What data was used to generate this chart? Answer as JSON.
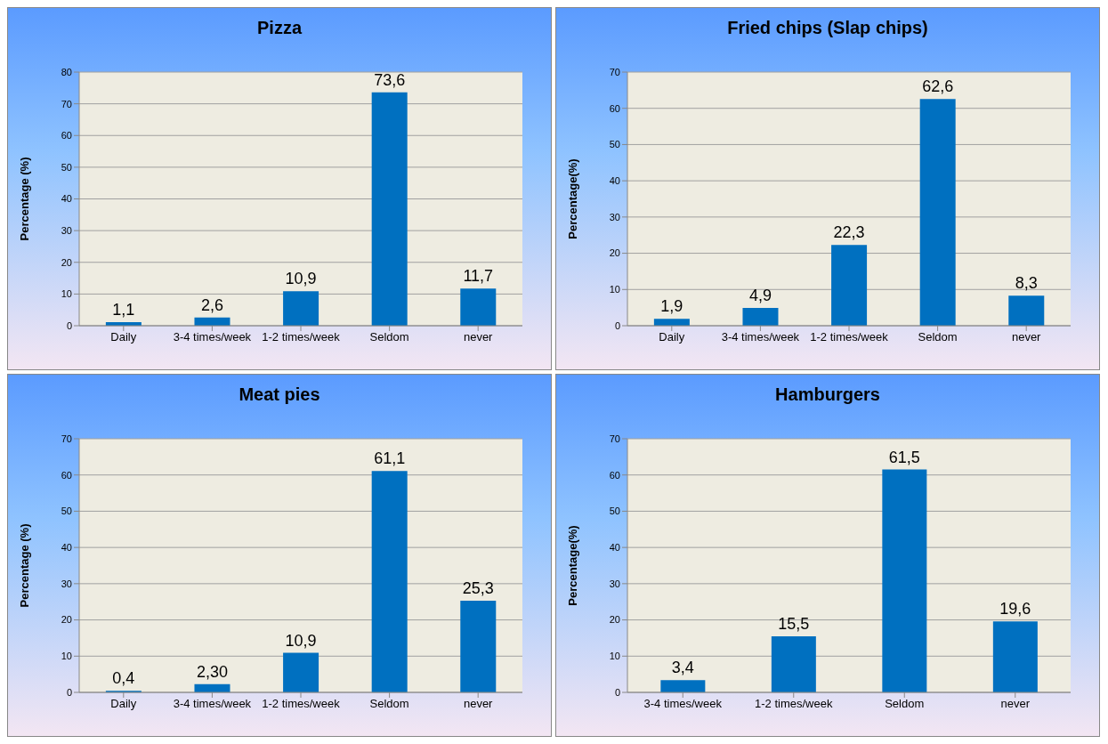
{
  "chart_data": [
    {
      "type": "bar",
      "title": "Pizza",
      "ylabel": "Percentage (%)",
      "categories": [
        "Daily",
        "3-4 times/week",
        "1-2 times/week",
        "Seldom",
        "never"
      ],
      "values": [
        1.1,
        2.6,
        10.9,
        73.6,
        11.7
      ],
      "value_labels": [
        "1,1",
        "2,6",
        "10,9",
        "73,6",
        "11,7"
      ],
      "color": "#0070c0",
      "ylim": [
        0,
        80
      ],
      "yticks": [
        0,
        10,
        20,
        30,
        40,
        50,
        60,
        70,
        80
      ],
      "grid": "y"
    },
    {
      "type": "bar",
      "title": "Fried chips (Slap chips)",
      "ylabel": "Percentage(%)",
      "categories": [
        "Daily",
        "3-4 times/week",
        "1-2 times/week",
        "Seldom",
        "never"
      ],
      "values": [
        1.9,
        4.9,
        22.3,
        62.6,
        8.3
      ],
      "value_labels": [
        "1,9",
        "4,9",
        "22,3",
        "62,6",
        "8,3"
      ],
      "color": "#0070c0",
      "ylim": [
        0,
        70
      ],
      "yticks": [
        0,
        10,
        20,
        30,
        40,
        50,
        60,
        70
      ],
      "grid": "y"
    },
    {
      "type": "bar",
      "title": "Meat pies",
      "ylabel": "Percentage (%)",
      "categories": [
        "Daily",
        "3-4 times/week",
        "1-2 times/week",
        "Seldom",
        "never"
      ],
      "values": [
        0.4,
        2.3,
        10.9,
        61.1,
        25.3
      ],
      "value_labels": [
        "0,4",
        "2,30",
        "10,9",
        "61,1",
        "25,3"
      ],
      "color": "#0070c0",
      "ylim": [
        0,
        70
      ],
      "yticks": [
        0,
        10,
        20,
        30,
        40,
        50,
        60,
        70
      ],
      "grid": "y"
    },
    {
      "type": "bar",
      "title": "Hamburgers",
      "ylabel": "Percentage(%)",
      "categories": [
        "3-4 times/week",
        "1-2 times/week",
        "Seldom",
        "never"
      ],
      "values": [
        3.4,
        15.5,
        61.5,
        19.6
      ],
      "value_labels": [
        "3,4",
        "15,5",
        "61,5",
        "19,6"
      ],
      "color": "#0070c0",
      "ylim": [
        0,
        70
      ],
      "yticks": [
        0,
        10,
        20,
        30,
        40,
        50,
        60,
        70
      ],
      "grid": "y"
    }
  ]
}
